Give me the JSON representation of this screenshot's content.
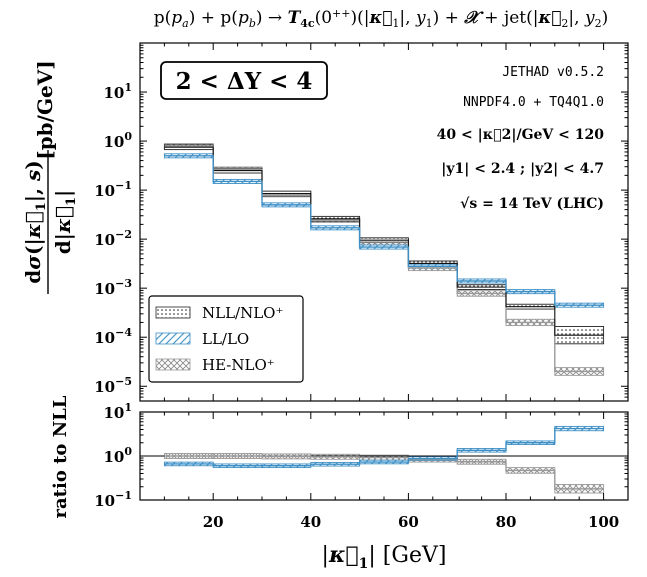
{
  "chart_data": [
    {
      "type": "step-histogram",
      "title": "p(p_a) + p(p_b) → T_4c(0^{++})(|κ⃗_1|, y_1) + 𝒳 + jet(|κ⃗_2|, y_2)",
      "xlabel": "|κ⃗_1| [GeV]",
      "ylabel": "dσ(|κ⃗_1|, s) / d|κ⃗_1| [pb/GeV]",
      "yscale": "log",
      "xlim": [
        5,
        105
      ],
      "ylim": [
        5e-06,
        100
      ],
      "x_ticks": [
        20,
        40,
        60,
        80,
        100
      ],
      "y_ticks": [
        {
          "value": 10,
          "label": "10^1"
        },
        {
          "value": 1,
          "label": "10^0"
        },
        {
          "value": 0.1,
          "label": "10^-1"
        },
        {
          "value": 0.01,
          "label": "10^-2"
        },
        {
          "value": 0.001,
          "label": "10^-3"
        },
        {
          "value": 0.0001,
          "label": "10^-4"
        },
        {
          "value": 1e-05,
          "label": "10^-5"
        }
      ],
      "bin_edges": [
        10,
        20,
        30,
        40,
        50,
        60,
        70,
        80,
        90,
        100
      ],
      "series": [
        {
          "name": "NLL/NLO⁺",
          "key": "nll",
          "values": [
            0.75,
            0.25,
            0.085,
            0.026,
            0.0095,
            0.0032,
            0.00105,
            0.00042,
            0.00011
          ],
          "band": [
            0.12,
            0.12,
            0.12,
            0.12,
            0.12,
            0.12,
            0.12,
            0.12,
            0.5
          ]
        },
        {
          "name": "LL/LO",
          "key": "ll",
          "values": [
            0.5,
            0.15,
            0.05,
            0.017,
            0.0069,
            0.0028,
            0.0014,
            0.00085,
            0.00045
          ],
          "band": [
            0.1,
            0.1,
            0.1,
            0.1,
            0.1,
            0.1,
            0.1,
            0.1,
            0.1
          ]
        },
        {
          "name": "HE-NLO⁺",
          "key": "he",
          "values": [
            0.78,
            0.26,
            0.083,
            0.025,
            0.0087,
            0.0026,
            0.00078,
            0.0002,
            2e-05
          ],
          "band": [
            0.14,
            0.14,
            0.14,
            0.14,
            0.14,
            0.14,
            0.14,
            0.16,
            0.2
          ]
        }
      ],
      "annotations": {
        "rapidity_box": "2 < ΔY < 4",
        "lines": [
          "JETHAD v0.5.2",
          "NNPDF4.0 + TQ4Q1.0",
          "40 < |κ⃗2|/GeV < 120",
          "|y1| < 2.4 ;  |y2| < 4.7",
          "√s = 14 TeV (LHC)"
        ]
      },
      "legend_position": "bottom-left"
    },
    {
      "type": "step-histogram",
      "ylabel": "ratio to NLL",
      "yscale": "log",
      "ylim": [
        0.1,
        10
      ],
      "y_ticks": [
        {
          "value": 10,
          "label": "10^1"
        },
        {
          "value": 1,
          "label": "10^0"
        },
        {
          "value": 0.1,
          "label": "10^-1"
        }
      ],
      "reference_line": 1,
      "bin_edges": [
        10,
        20,
        30,
        40,
        50,
        60,
        70,
        80,
        90,
        100
      ],
      "series": [
        {
          "name": "NLL/NLO⁺",
          "key": "nll",
          "values": [
            1,
            1,
            1,
            1,
            1,
            1,
            1,
            1,
            1
          ]
        },
        {
          "name": "LL/LO",
          "key": "ll",
          "values": [
            0.66,
            0.6,
            0.6,
            0.65,
            0.73,
            0.87,
            1.35,
            2.0,
            4.2
          ],
          "band": [
            0.1,
            0.1,
            0.1,
            0.1,
            0.1,
            0.1,
            0.1,
            0.1,
            0.12
          ]
        },
        {
          "name": "HE-NLO⁺",
          "key": "he",
          "values": [
            1.0,
            1.0,
            0.98,
            0.96,
            0.92,
            0.83,
            0.74,
            0.47,
            0.18
          ],
          "band": [
            0.14,
            0.14,
            0.14,
            0.14,
            0.14,
            0.14,
            0.14,
            0.16,
            0.25
          ]
        }
      ]
    }
  ],
  "colors": {
    "ll": "#3d8fc6",
    "nll": "#222222",
    "he": "#9a9a9a"
  }
}
